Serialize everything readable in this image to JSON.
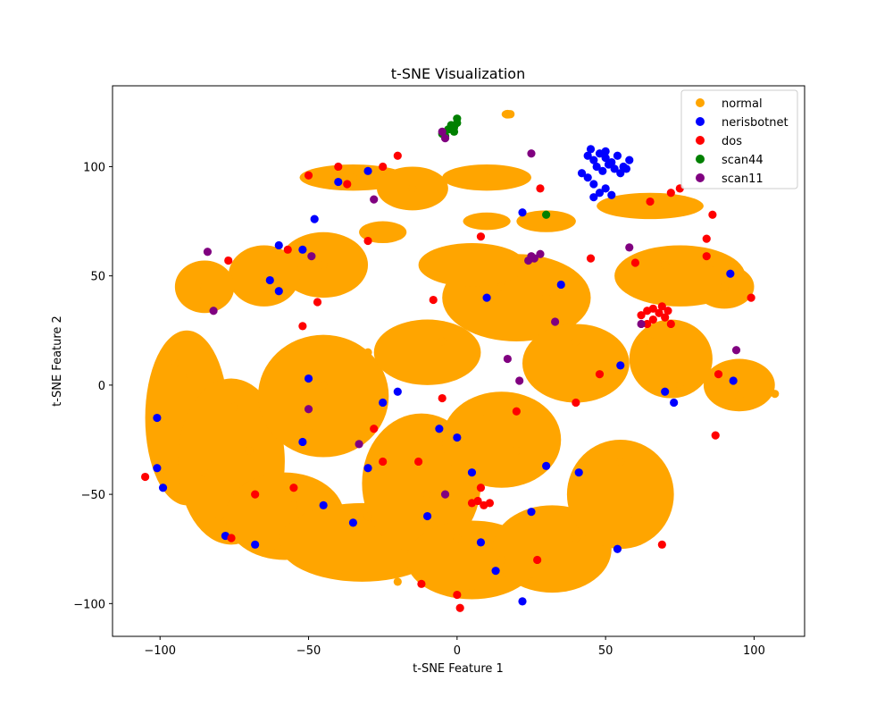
{
  "chart_data": {
    "type": "scatter",
    "title": "t-SNE Visualization",
    "xlabel": "t-SNE Feature 1",
    "ylabel": "t-SNE Feature 2",
    "xlim": [
      -116,
      117
    ],
    "ylim": [
      -115,
      137
    ],
    "xticks": [
      -100,
      -50,
      0,
      50,
      100
    ],
    "yticks": [
      -100,
      -50,
      0,
      50,
      100
    ],
    "grid": false,
    "legend_position": "top-right",
    "blobs": [
      {
        "cx": -91,
        "cy": -15,
        "rx": 14,
        "ry": 40
      },
      {
        "cx": -76,
        "cy": -35,
        "rx": 18,
        "ry": 38
      },
      {
        "cx": -58,
        "cy": -60,
        "rx": 20,
        "ry": 20
      },
      {
        "cx": -45,
        "cy": -5,
        "rx": 22,
        "ry": 28
      },
      {
        "cx": -32,
        "cy": -72,
        "rx": 28,
        "ry": 18
      },
      {
        "cx": -12,
        "cy": -45,
        "rx": 20,
        "ry": 32
      },
      {
        "cx": 5,
        "cy": -80,
        "rx": 22,
        "ry": 18
      },
      {
        "cx": 32,
        "cy": -75,
        "rx": 20,
        "ry": 20
      },
      {
        "cx": 55,
        "cy": -50,
        "rx": 18,
        "ry": 25
      },
      {
        "cx": 15,
        "cy": -25,
        "rx": 20,
        "ry": 22
      },
      {
        "cx": -10,
        "cy": 15,
        "rx": 18,
        "ry": 15
      },
      {
        "cx": 20,
        "cy": 40,
        "rx": 25,
        "ry": 20
      },
      {
        "cx": 5,
        "cy": 55,
        "rx": 18,
        "ry": 10
      },
      {
        "cx": 40,
        "cy": 10,
        "rx": 18,
        "ry": 18
      },
      {
        "cx": 72,
        "cy": 12,
        "rx": 14,
        "ry": 18
      },
      {
        "cx": 95,
        "cy": 0,
        "rx": 12,
        "ry": 12
      },
      {
        "cx": 75,
        "cy": 50,
        "rx": 22,
        "ry": 14
      },
      {
        "cx": 90,
        "cy": 45,
        "rx": 10,
        "ry": 10
      },
      {
        "cx": -45,
        "cy": 55,
        "rx": 15,
        "ry": 15
      },
      {
        "cx": -65,
        "cy": 50,
        "rx": 12,
        "ry": 14
      },
      {
        "cx": -85,
        "cy": 45,
        "rx": 10,
        "ry": 12
      },
      {
        "cx": -35,
        "cy": 95,
        "rx": 18,
        "ry": 6
      },
      {
        "cx": -15,
        "cy": 90,
        "rx": 12,
        "ry": 10
      },
      {
        "cx": 10,
        "cy": 95,
        "rx": 15,
        "ry": 6
      },
      {
        "cx": 10,
        "cy": 75,
        "rx": 8,
        "ry": 4
      },
      {
        "cx": 65,
        "cy": 82,
        "rx": 18,
        "ry": 6
      },
      {
        "cx": 30,
        "cy": 75,
        "rx": 10,
        "ry": 5
      },
      {
        "cx": -25,
        "cy": 70,
        "rx": 8,
        "ry": 5
      },
      {
        "cx": 17,
        "cy": 124,
        "rx": 2,
        "ry": 2
      }
    ],
    "series": [
      {
        "name": "normal",
        "color": "#ffa500",
        "points": [
          [
            -100,
            -15
          ],
          [
            -95,
            10
          ],
          [
            -90,
            5
          ],
          [
            -85,
            -40
          ],
          [
            -80,
            -60
          ],
          [
            -75,
            -10
          ],
          [
            -70,
            -30
          ],
          [
            -60,
            -75
          ],
          [
            -55,
            -55
          ],
          [
            -50,
            -20
          ],
          [
            -45,
            0
          ],
          [
            -40,
            -85
          ],
          [
            -30,
            -60
          ],
          [
            -20,
            -90
          ],
          [
            -10,
            -50
          ],
          [
            0,
            -70
          ],
          [
            5,
            -95
          ],
          [
            15,
            -80
          ],
          [
            25,
            -90
          ],
          [
            40,
            -70
          ],
          [
            55,
            -35
          ],
          [
            60,
            -60
          ],
          [
            10,
            -15
          ],
          [
            20,
            -30
          ],
          [
            -5,
            20
          ],
          [
            15,
            45
          ],
          [
            30,
            40
          ],
          [
            40,
            20
          ],
          [
            65,
            20
          ],
          [
            75,
            0
          ],
          [
            95,
            -5
          ],
          [
            70,
            55
          ],
          [
            90,
            45
          ],
          [
            -45,
            55
          ],
          [
            -65,
            50
          ],
          [
            -85,
            45
          ],
          [
            -35,
            95
          ],
          [
            -15,
            90
          ],
          [
            10,
            95
          ],
          [
            65,
            82
          ],
          [
            18,
            124
          ],
          [
            -30,
            15
          ],
          [
            -100,
            -40
          ],
          [
            107,
            -4
          ]
        ]
      },
      {
        "name": "nerisbotnet",
        "color": "#0000ff",
        "points": [
          [
            44,
            105
          ],
          [
            46,
            103
          ],
          [
            48,
            106
          ],
          [
            50,
            104
          ],
          [
            52,
            102
          ],
          [
            54,
            105
          ],
          [
            56,
            100
          ],
          [
            58,
            103
          ],
          [
            47,
            100
          ],
          [
            49,
            98
          ],
          [
            51,
            101
          ],
          [
            53,
            99
          ],
          [
            55,
            97
          ],
          [
            57,
            99
          ],
          [
            50,
            107
          ],
          [
            45,
            108
          ],
          [
            42,
            97
          ],
          [
            44,
            95
          ],
          [
            46,
            92
          ],
          [
            48,
            88
          ],
          [
            50,
            90
          ],
          [
            52,
            87
          ],
          [
            46,
            86
          ],
          [
            -101,
            -15
          ],
          [
            -99,
            -47
          ],
          [
            -101,
            -38
          ],
          [
            -78,
            -69
          ],
          [
            -68,
            -73
          ],
          [
            -52,
            -26
          ],
          [
            -50,
            3
          ],
          [
            -45,
            -55
          ],
          [
            -35,
            -63
          ],
          [
            -30,
            -38
          ],
          [
            -25,
            -8
          ],
          [
            -20,
            -3
          ],
          [
            -10,
            -60
          ],
          [
            -6,
            -20
          ],
          [
            0,
            -24
          ],
          [
            5,
            -40
          ],
          [
            8,
            -72
          ],
          [
            13,
            -85
          ],
          [
            22,
            -99
          ],
          [
            25,
            -58
          ],
          [
            30,
            -37
          ],
          [
            41,
            -40
          ],
          [
            54,
            -75
          ],
          [
            55,
            9
          ],
          [
            70,
            -3
          ],
          [
            73,
            -8
          ],
          [
            93,
            2
          ],
          [
            92,
            51
          ],
          [
            10,
            40
          ],
          [
            35,
            46
          ],
          [
            22,
            79
          ],
          [
            -60,
            64
          ],
          [
            -63,
            48
          ],
          [
            -30,
            98
          ],
          [
            -40,
            93
          ],
          [
            -48,
            76
          ],
          [
            -60,
            43
          ],
          [
            -52,
            62
          ]
        ]
      },
      {
        "name": "dos",
        "color": "#ff0000",
        "points": [
          [
            62,
            32
          ],
          [
            64,
            34
          ],
          [
            66,
            30
          ],
          [
            68,
            33
          ],
          [
            70,
            31
          ],
          [
            72,
            28
          ],
          [
            66,
            35
          ],
          [
            69,
            36
          ],
          [
            64,
            28
          ],
          [
            71,
            34
          ],
          [
            5,
            -54
          ],
          [
            7,
            -53
          ],
          [
            9,
            -55
          ],
          [
            11,
            -54
          ],
          [
            -105,
            -42
          ],
          [
            -76,
            -70
          ],
          [
            -68,
            -50
          ],
          [
            -55,
            -47
          ],
          [
            -52,
            27
          ],
          [
            -47,
            38
          ],
          [
            -28,
            -20
          ],
          [
            -25,
            -35
          ],
          [
            -13,
            -35
          ],
          [
            -12,
            -91
          ],
          [
            -8,
            39
          ],
          [
            -5,
            -6
          ],
          [
            0,
            -96
          ],
          [
            1,
            -102
          ],
          [
            8,
            -47
          ],
          [
            20,
            -12
          ],
          [
            27,
            -80
          ],
          [
            40,
            -8
          ],
          [
            48,
            5
          ],
          [
            69,
            -73
          ],
          [
            87,
            -23
          ],
          [
            88,
            5
          ],
          [
            99,
            40
          ],
          [
            84,
            59
          ],
          [
            84,
            67
          ],
          [
            86,
            78
          ],
          [
            75,
            90
          ],
          [
            72,
            88
          ],
          [
            65,
            84
          ],
          [
            60,
            56
          ],
          [
            45,
            58
          ],
          [
            28,
            90
          ],
          [
            -40,
            100
          ],
          [
            -20,
            105
          ],
          [
            -25,
            100
          ],
          [
            -30,
            66
          ],
          [
            -57,
            62
          ],
          [
            -77,
            57
          ],
          [
            -50,
            96
          ],
          [
            -37,
            92
          ],
          [
            8,
            68
          ]
        ]
      },
      {
        "name": "scan44",
        "color": "#008000",
        "points": [
          [
            -5,
            115
          ],
          [
            -3,
            117
          ],
          [
            -1,
            118
          ],
          [
            0,
            120
          ],
          [
            -2,
            119
          ],
          [
            0,
            122
          ],
          [
            -4,
            114
          ],
          [
            -1,
            116
          ],
          [
            30,
            78
          ]
        ]
      },
      {
        "name": "scan11",
        "color": "#800080",
        "points": [
          [
            24,
            57
          ],
          [
            26,
            58
          ],
          [
            28,
            60
          ],
          [
            25,
            59
          ],
          [
            -5,
            116
          ],
          [
            -4,
            113
          ],
          [
            -84,
            61
          ],
          [
            -82,
            34
          ],
          [
            -49,
            59
          ],
          [
            -50,
            -11
          ],
          [
            -33,
            -27
          ],
          [
            -28,
            85
          ],
          [
            -4,
            -50
          ],
          [
            17,
            12
          ],
          [
            21,
            2
          ],
          [
            33,
            29
          ],
          [
            58,
            63
          ],
          [
            62,
            28
          ],
          [
            94,
            16
          ],
          [
            25,
            106
          ]
        ]
      }
    ]
  }
}
